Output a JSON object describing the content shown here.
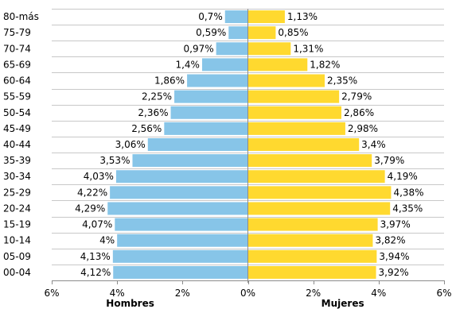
{
  "chart_data": {
    "type": "bar",
    "orientation": "horizontal",
    "categories": [
      "80-más",
      "75-79",
      "70-74",
      "65-69",
      "60-64",
      "55-59",
      "50-54",
      "45-49",
      "40-44",
      "35-39",
      "30-34",
      "25-29",
      "20-24",
      "15-19",
      "10-14",
      "05-09",
      "00-04"
    ],
    "series": [
      {
        "name": "Hombres",
        "color": "#87c5e8",
        "values": [
          0.7,
          0.59,
          0.97,
          1.4,
          1.86,
          2.25,
          2.36,
          2.56,
          3.06,
          3.53,
          4.03,
          4.22,
          4.29,
          4.07,
          4,
          4.13,
          4.12
        ],
        "labels": [
          "0,7%",
          "0,59%",
          "0,97%",
          "1,4%",
          "1,86%",
          "2,25%",
          "2,36%",
          "2,56%",
          "3,06%",
          "3,53%",
          "4,03%",
          "4,22%",
          "4,29%",
          "4,07%",
          "4%",
          "4,13%",
          "4,12%"
        ]
      },
      {
        "name": "Mujeres",
        "color": "#ffd92f",
        "values": [
          1.13,
          0.85,
          1.31,
          1.82,
          2.35,
          2.79,
          2.86,
          2.98,
          3.4,
          3.79,
          4.19,
          4.38,
          4.35,
          3.97,
          3.82,
          3.94,
          3.92
        ],
        "labels": [
          "1,13%",
          "0,85%",
          "1,31%",
          "1,82%",
          "2,35%",
          "2,79%",
          "2,86%",
          "2,98%",
          "3,4%",
          "3,79%",
          "4,19%",
          "4,38%",
          "4,35%",
          "3,97%",
          "3,82%",
          "3,94%",
          "3,92%"
        ]
      }
    ],
    "xlim": [
      -6,
      6
    ],
    "x_ticks": [
      -6,
      -4,
      -2,
      0,
      2,
      4,
      6
    ],
    "x_tick_labels": [
      "6%",
      "4%",
      "2%",
      "0%",
      "2%",
      "4%",
      "6%"
    ],
    "axis_titles": {
      "left": "Hombres",
      "right": "Mujeres"
    },
    "grid": "horizontal",
    "grid_color": "#c8c8c8",
    "legend": "none"
  }
}
